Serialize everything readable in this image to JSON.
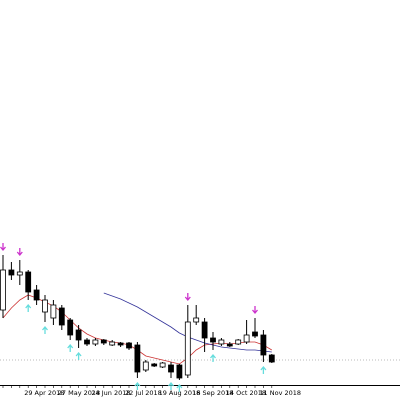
{
  "chart_data": {
    "type": "candlestick",
    "categories": [
      null,
      null,
      null,
      "29 Apr 2018",
      null,
      null,
      null,
      "27 May 2018",
      null,
      null,
      null,
      "24 Jun 2018",
      null,
      null,
      null,
      "22 Jul 2018",
      null,
      null,
      null,
      "19 Aug 2018",
      null,
      null,
      null,
      "16 Sep 2018",
      null,
      null,
      null,
      "14 Oct 2018",
      null,
      null,
      null,
      "11 Nov 2018",
      null
    ],
    "open": [
      90,
      130,
      125,
      128,
      110,
      88,
      82,
      92,
      80,
      70,
      60,
      56,
      60,
      55,
      57,
      57,
      55,
      30,
      36,
      33,
      35,
      35,
      25,
      78,
      78,
      62,
      56,
      56,
      56,
      58,
      68,
      65,
      45
    ],
    "high": [
      145,
      138,
      140,
      130,
      115,
      105,
      100,
      95,
      82,
      75,
      62,
      62,
      61,
      60,
      58,
      58,
      58,
      40,
      37,
      38,
      38,
      36,
      95,
      95,
      82,
      68,
      62,
      58,
      61,
      80,
      82,
      70,
      46
    ],
    "low": [
      82,
      120,
      115,
      100,
      95,
      78,
      75,
      70,
      60,
      52,
      54,
      54,
      55,
      54,
      53,
      50,
      22,
      28,
      33,
      32,
      22,
      20,
      22,
      75,
      48,
      50,
      54,
      53,
      55,
      56,
      62,
      38,
      37
    ],
    "close": [
      130,
      125,
      128,
      108,
      100,
      100,
      95,
      75,
      65,
      60,
      56,
      60,
      57,
      58,
      55,
      52,
      28,
      38,
      34,
      37,
      28,
      22,
      78,
      82,
      62,
      58,
      60,
      54,
      60,
      65,
      64,
      45,
      38
    ],
    "up_color": "#ffffff",
    "down_color": "#000000",
    "series": [
      {
        "color": "#cc3333",
        "values": [
          82,
          92,
          100,
          105,
          102,
          98,
          94,
          88,
          80,
          72,
          66,
          62,
          60,
          58,
          57,
          55,
          50,
          44,
          42,
          40,
          38,
          36,
          42,
          50,
          55,
          56,
          57,
          56,
          57,
          58,
          58,
          55,
          50
        ]
      },
      {
        "color": "#333399",
        "values": [
          null,
          null,
          null,
          null,
          null,
          null,
          null,
          null,
          null,
          null,
          null,
          null,
          107,
          104,
          101,
          97,
          93,
          88,
          83,
          78,
          73,
          67,
          63,
          60,
          57,
          55,
          53,
          52,
          51,
          50,
          50,
          49,
          48
        ]
      }
    ],
    "fractals_down": {
      "color": "#cc33cc",
      "values": [
        145,
        null,
        140,
        null,
        null,
        null,
        null,
        null,
        null,
        null,
        null,
        null,
        null,
        null,
        null,
        null,
        null,
        null,
        null,
        null,
        null,
        null,
        95,
        null,
        null,
        null,
        null,
        null,
        null,
        null,
        82,
        null,
        null
      ]
    },
    "fractals_up": {
      "color": "#66dddd",
      "values": [
        null,
        null,
        null,
        100,
        null,
        78,
        null,
        null,
        60,
        52,
        null,
        null,
        null,
        null,
        null,
        null,
        22,
        null,
        null,
        null,
        22,
        20,
        null,
        null,
        null,
        50,
        null,
        null,
        null,
        null,
        null,
        38,
        null
      ]
    },
    "ylim": [
      0,
      400
    ]
  }
}
